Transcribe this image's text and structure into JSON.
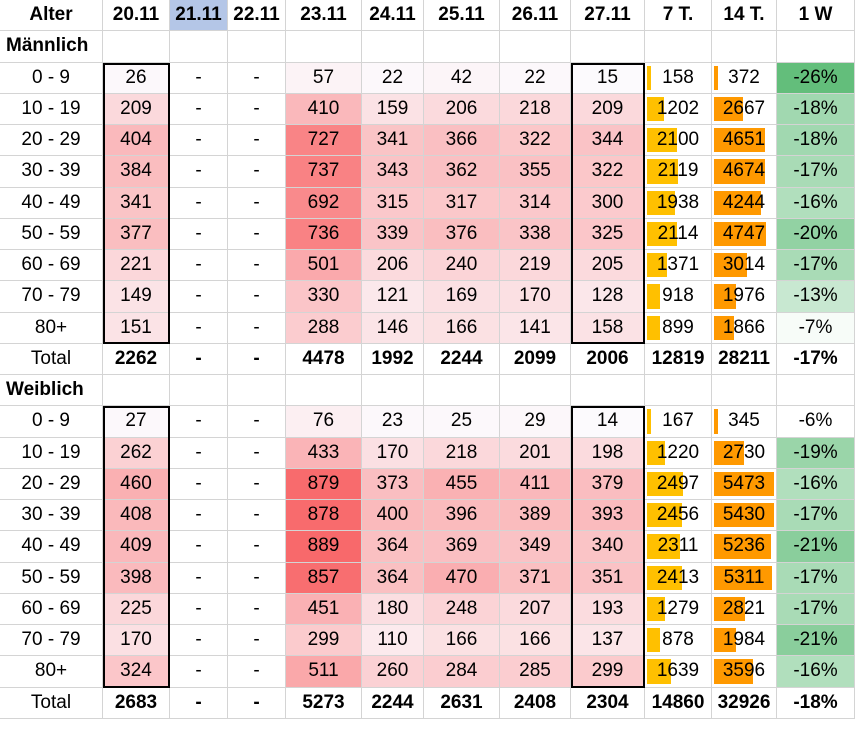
{
  "header": [
    "Alter",
    "20.11",
    "21.11",
    "22.11",
    "23.11",
    "24.11",
    "25.11",
    "26.11",
    "27.11",
    "7 T.",
    "14 T.",
    "1 W"
  ],
  "colors": {
    "heat_high": "#f8696b",
    "heat_low": "#fcfcff",
    "bar_7t": "#ffc000",
    "bar_14t": "#ff9900",
    "green_strong": "#63be7b",
    "highlight_header": "#b4c6e7"
  },
  "sections": [
    {
      "title": "Männlich",
      "rows": [
        {
          "age": "0 - 9",
          "d2011": "26",
          "d2111": "-",
          "d2211": "-",
          "d2311": "57",
          "d2411": "22",
          "d2511": "42",
          "d2611": "22",
          "d2711": "15",
          "t7": "158",
          "t14": "372",
          "w1": "-26%"
        },
        {
          "age": "10 - 19",
          "d2011": "209",
          "d2111": "-",
          "d2211": "-",
          "d2311": "410",
          "d2411": "159",
          "d2511": "206",
          "d2611": "218",
          "d2711": "209",
          "t7": "1202",
          "t14": "2667",
          "w1": "-18%"
        },
        {
          "age": "20 - 29",
          "d2011": "404",
          "d2111": "-",
          "d2211": "-",
          "d2311": "727",
          "d2411": "341",
          "d2511": "366",
          "d2611": "322",
          "d2711": "344",
          "t7": "2100",
          "t14": "4651",
          "w1": "-18%"
        },
        {
          "age": "30 - 39",
          "d2011": "384",
          "d2111": "-",
          "d2211": "-",
          "d2311": "737",
          "d2411": "343",
          "d2511": "362",
          "d2611": "355",
          "d2711": "322",
          "t7": "2119",
          "t14": "4674",
          "w1": "-17%"
        },
        {
          "age": "40 - 49",
          "d2011": "341",
          "d2111": "-",
          "d2211": "-",
          "d2311": "692",
          "d2411": "315",
          "d2511": "317",
          "d2611": "314",
          "d2711": "300",
          "t7": "1938",
          "t14": "4244",
          "w1": "-16%"
        },
        {
          "age": "50 - 59",
          "d2011": "377",
          "d2111": "-",
          "d2211": "-",
          "d2311": "736",
          "d2411": "339",
          "d2511": "376",
          "d2611": "338",
          "d2711": "325",
          "t7": "2114",
          "t14": "4747",
          "w1": "-20%"
        },
        {
          "age": "60 - 69",
          "d2011": "221",
          "d2111": "-",
          "d2211": "-",
          "d2311": "501",
          "d2411": "206",
          "d2511": "240",
          "d2611": "219",
          "d2711": "205",
          "t7": "1371",
          "t14": "3014",
          "w1": "-17%"
        },
        {
          "age": "70 - 79",
          "d2011": "149",
          "d2111": "-",
          "d2211": "-",
          "d2311": "330",
          "d2411": "121",
          "d2511": "169",
          "d2611": "170",
          "d2711": "128",
          "t7": "918",
          "t14": "1976",
          "w1": "-13%"
        },
        {
          "age": "80+",
          "d2011": "151",
          "d2111": "-",
          "d2211": "-",
          "d2311": "288",
          "d2411": "146",
          "d2511": "166",
          "d2611": "141",
          "d2711": "158",
          "t7": "899",
          "t14": "1866",
          "w1": "-7%"
        }
      ],
      "total": {
        "age": "Total",
        "d2011": "2262",
        "d2111": "-",
        "d2211": "-",
        "d2311": "4478",
        "d2411": "1992",
        "d2511": "2244",
        "d2611": "2099",
        "d2711": "2006",
        "t7": "12819",
        "t14": "28211",
        "w1": "-17%"
      }
    },
    {
      "title": "Weiblich",
      "rows": [
        {
          "age": "0 - 9",
          "d2011": "27",
          "d2111": "-",
          "d2211": "-",
          "d2311": "76",
          "d2411": "23",
          "d2511": "25",
          "d2611": "29",
          "d2711": "14",
          "t7": "167",
          "t14": "345",
          "w1": "-6%"
        },
        {
          "age": "10 - 19",
          "d2011": "262",
          "d2111": "-",
          "d2211": "-",
          "d2311": "433",
          "d2411": "170",
          "d2511": "218",
          "d2611": "201",
          "d2711": "198",
          "t7": "1220",
          "t14": "2730",
          "w1": "-19%"
        },
        {
          "age": "20 - 29",
          "d2011": "460",
          "d2111": "-",
          "d2211": "-",
          "d2311": "879",
          "d2411": "373",
          "d2511": "455",
          "d2611": "411",
          "d2711": "379",
          "t7": "2497",
          "t14": "5473",
          "w1": "-16%"
        },
        {
          "age": "30 - 39",
          "d2011": "408",
          "d2111": "-",
          "d2211": "-",
          "d2311": "878",
          "d2411": "400",
          "d2511": "396",
          "d2611": "389",
          "d2711": "393",
          "t7": "2456",
          "t14": "5430",
          "w1": "-17%"
        },
        {
          "age": "40 - 49",
          "d2011": "409",
          "d2111": "-",
          "d2211": "-",
          "d2311": "889",
          "d2411": "364",
          "d2511": "369",
          "d2611": "349",
          "d2711": "340",
          "t7": "2311",
          "t14": "5236",
          "w1": "-21%"
        },
        {
          "age": "50 - 59",
          "d2011": "398",
          "d2111": "-",
          "d2211": "-",
          "d2311": "857",
          "d2411": "364",
          "d2511": "470",
          "d2611": "371",
          "d2711": "351",
          "t7": "2413",
          "t14": "5311",
          "w1": "-17%"
        },
        {
          "age": "60 - 69",
          "d2011": "225",
          "d2111": "-",
          "d2211": "-",
          "d2311": "451",
          "d2411": "180",
          "d2511": "248",
          "d2611": "207",
          "d2711": "193",
          "t7": "1279",
          "t14": "2821",
          "w1": "-17%"
        },
        {
          "age": "70 - 79",
          "d2011": "170",
          "d2111": "-",
          "d2211": "-",
          "d2311": "299",
          "d2411": "110",
          "d2511": "166",
          "d2611": "166",
          "d2711": "137",
          "t7": "878",
          "t14": "1984",
          "w1": "-21%"
        },
        {
          "age": "80+",
          "d2011": "324",
          "d2111": "-",
          "d2211": "-",
          "d2311": "511",
          "d2411": "260",
          "d2511": "284",
          "d2611": "285",
          "d2711": "299",
          "t7": "1639",
          "t14": "3596",
          "w1": "-16%"
        }
      ],
      "total": {
        "age": "Total",
        "d2011": "2683",
        "d2111": "-",
        "d2211": "-",
        "d2311": "5273",
        "d2411": "2244",
        "d2511": "2631",
        "d2611": "2408",
        "d2711": "2304",
        "t7": "14860",
        "t14": "32926",
        "w1": "-18%"
      }
    }
  ]
}
